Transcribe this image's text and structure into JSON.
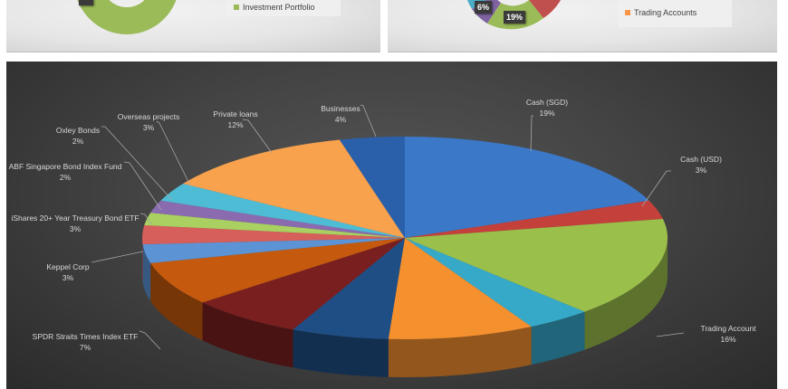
{
  "top_left_chart": {
    "legend": [
      {
        "label": "Investment Portfolio",
        "color": "#9bbb59"
      }
    ]
  },
  "top_right_chart": {
    "data_labels": [
      "6%",
      "19%"
    ],
    "legend": [
      {
        "label": "Trading Accounts",
        "color": "#f79646"
      }
    ]
  },
  "chart_data": {
    "type": "pie",
    "style": "3d-exploded-none",
    "legend": "none",
    "slices": [
      {
        "name": "Cash (SGD)",
        "label": "19%",
        "value": 19,
        "color": "#3b78c7"
      },
      {
        "name": "Cash (USD)",
        "label": "3%",
        "value": 3,
        "color": "#c4403b"
      },
      {
        "name": "Trading Account",
        "label": "16%",
        "value": 16,
        "color": "#9bbf4b"
      },
      {
        "name": "",
        "label": "",
        "value": 4,
        "color": "#36a9c9"
      },
      {
        "name": "",
        "label": "",
        "value": 9,
        "color": "#f5902f"
      },
      {
        "name": "",
        "label": "",
        "value": 6,
        "color": "#1f4e85"
      },
      {
        "name": "",
        "label": "",
        "value": 7,
        "color": "#7a1f1f"
      },
      {
        "name": "SPDR Straits Times Index ETF",
        "label": "7%",
        "value": 7,
        "color": "#c55a0e"
      },
      {
        "name": "Keppel Corp",
        "label": "3%",
        "value": 3,
        "color": "#5b93d5"
      },
      {
        "name": "iShares 20+ Year Treasury Bond ETF",
        "label": "3%",
        "value": 3,
        "color": "#d75f5b"
      },
      {
        "name": "ABF Singapore Bond Index Fund",
        "label": "2%",
        "value": 2,
        "color": "#a9d060"
      },
      {
        "name": "Oxley Bonds",
        "label": "2%",
        "value": 2,
        "color": "#8a6bb0"
      },
      {
        "name": "Overseas projects",
        "label": "3%",
        "value": 3,
        "color": "#4fbcd6"
      },
      {
        "name": "Private loans",
        "label": "12%",
        "value": 12,
        "color": "#f9a24e"
      },
      {
        "name": "Businesses",
        "label": "4%",
        "value": 4,
        "color": "#2a60aa"
      }
    ]
  }
}
